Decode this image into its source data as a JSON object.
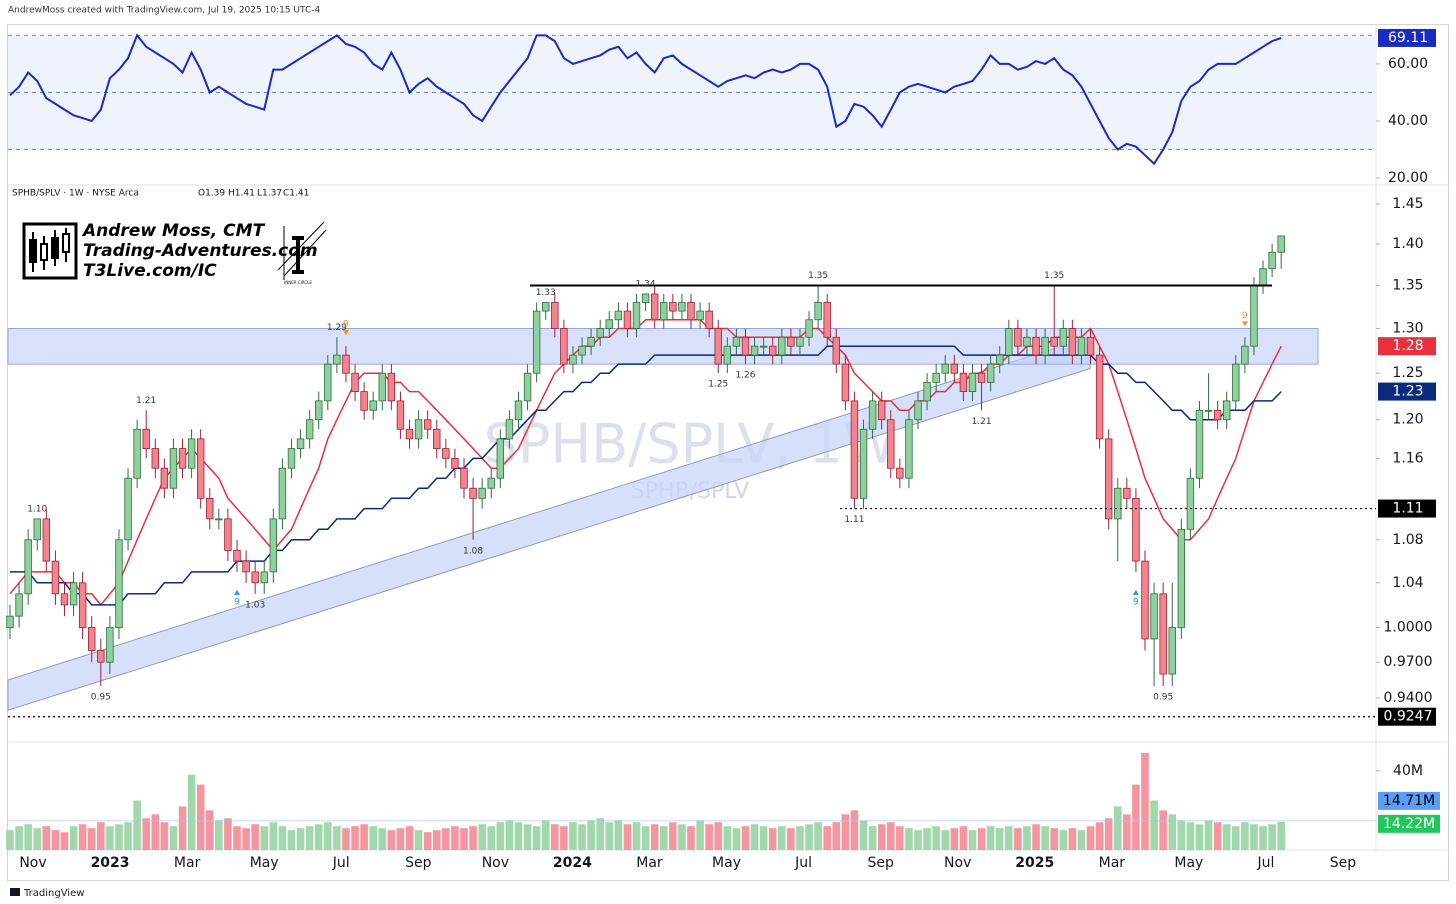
{
  "header": "AndrewMoss created with TradingView.com, Jul 19, 2025 10:15 UTC-4",
  "footer": "TradingView",
  "logo": {
    "lines": [
      "Andrew Moss, CMT",
      "Trading-Adventures.com",
      "T3Live.com/IC"
    ],
    "badge": "INNER CIRCLE"
  },
  "chart_data": [
    {
      "type": "line",
      "color": "#1a2bbf",
      "ylim": [
        19.3,
        71.9
      ],
      "yticks": [
        {
          "value": 20,
          "label": "20.00"
        },
        {
          "value": 40,
          "label": "40.00"
        },
        {
          "value": 60,
          "label": "60.00"
        }
      ],
      "levels": [
        30,
        50,
        70
      ],
      "values": [
        49,
        52,
        57,
        54,
        48,
        46,
        44,
        42,
        41,
        40,
        44,
        55,
        58,
        62,
        70,
        66,
        64,
        62,
        60,
        57,
        64,
        58,
        50,
        52,
        50,
        48,
        46,
        45,
        44,
        58,
        58,
        60,
        62,
        64,
        66,
        68,
        70,
        67,
        66,
        64,
        60,
        58,
        64,
        58,
        50,
        53,
        55,
        52,
        50,
        48,
        46,
        42,
        40,
        45,
        50,
        54,
        58,
        62,
        70,
        70,
        68,
        62,
        60,
        61,
        62,
        63,
        65,
        66,
        62,
        64,
        60,
        57,
        62,
        63,
        60,
        58,
        56,
        54,
        52,
        54,
        55,
        56,
        55,
        57,
        58,
        57,
        58,
        60,
        60,
        58,
        52,
        38,
        40,
        46,
        45,
        42,
        38,
        44,
        50,
        52,
        53,
        52,
        51,
        50,
        52,
        53,
        54,
        58,
        63,
        60,
        60,
        58,
        59,
        61,
        60,
        62,
        58,
        56,
        52,
        46,
        40,
        34,
        30,
        32,
        31,
        28,
        25,
        30,
        36,
        47,
        52,
        54,
        58,
        60,
        60,
        60,
        62,
        64,
        66,
        68,
        69.11
      ]
    },
    {
      "type": "candlestick",
      "log_scale": true,
      "grid": false,
      "legend": [
        "SPHB/SPLV · 1W · NYSE Arca",
        "O1.39",
        "H1.41",
        "L1.37",
        "C1.41"
      ],
      "watermark": [
        "SPHB/SPLV, 1W",
        "SPHB/SPLV"
      ],
      "up_color": "#8fd19e",
      "down_color": "#f3838f",
      "ylim": [
        0.906,
        1.468
      ],
      "yticks": [
        {
          "value": 0.94,
          "label": "0.9400"
        },
        {
          "value": 0.97,
          "label": "0.9700"
        },
        {
          "value": 1.0,
          "label": "1.0000"
        },
        1.04,
        1.08,
        1.16,
        {
          "value": 1.2,
          "label": "1.20"
        },
        1.25,
        {
          "value": 1.3,
          "label": "1.30"
        },
        1.35,
        {
          "value": 1.4,
          "label": "1.40"
        },
        1.45
      ],
      "open": [
        1.0,
        1.01,
        1.03,
        1.08,
        1.1,
        1.06,
        1.03,
        1.02,
        1.04,
        1.0,
        0.98,
        0.97,
        1.0,
        1.08,
        1.14,
        1.19,
        1.17,
        1.15,
        1.13,
        1.17,
        1.15,
        1.18,
        1.12,
        1.1,
        1.1,
        1.07,
        1.06,
        1.05,
        1.04,
        1.05,
        1.1,
        1.15,
        1.17,
        1.18,
        1.2,
        1.22,
        1.26,
        1.27,
        1.25,
        1.23,
        1.21,
        1.22,
        1.25,
        1.22,
        1.19,
        1.18,
        1.2,
        1.19,
        1.17,
        1.16,
        1.15,
        1.13,
        1.12,
        1.13,
        1.14,
        1.18,
        1.2,
        1.22,
        1.25,
        1.32,
        1.33,
        1.3,
        1.26,
        1.27,
        1.28,
        1.29,
        1.3,
        1.31,
        1.32,
        1.3,
        1.33,
        1.34,
        1.31,
        1.33,
        1.32,
        1.33,
        1.31,
        1.32,
        1.3,
        1.26,
        1.28,
        1.29,
        1.27,
        1.28,
        1.28,
        1.27,
        1.29,
        1.28,
        1.29,
        1.31,
        1.33,
        1.29,
        1.26,
        1.22,
        1.12,
        1.19,
        1.22,
        1.2,
        1.15,
        1.14,
        1.2,
        1.22,
        1.24,
        1.25,
        1.26,
        1.25,
        1.23,
        1.25,
        1.24,
        1.26,
        1.27,
        1.3,
        1.28,
        1.29,
        1.27,
        1.29,
        1.28,
        1.3,
        1.27,
        1.29,
        1.27,
        1.18,
        1.1,
        1.13,
        1.12,
        1.06,
        0.99,
        1.03,
        0.96,
        1.0,
        1.09,
        1.14,
        1.21,
        1.21,
        1.2,
        1.22,
        1.26,
        1.28,
        1.35,
        1.37,
        1.39
      ],
      "high": [
        1.02,
        1.04,
        1.09,
        1.1,
        1.11,
        1.07,
        1.04,
        1.05,
        1.05,
        1.01,
        0.99,
        1.01,
        1.09,
        1.15,
        1.2,
        1.21,
        1.18,
        1.16,
        1.18,
        1.18,
        1.19,
        1.19,
        1.13,
        1.11,
        1.11,
        1.08,
        1.07,
        1.06,
        1.06,
        1.11,
        1.16,
        1.18,
        1.19,
        1.21,
        1.23,
        1.27,
        1.29,
        1.28,
        1.26,
        1.24,
        1.23,
        1.26,
        1.26,
        1.23,
        1.2,
        1.21,
        1.21,
        1.2,
        1.18,
        1.17,
        1.16,
        1.14,
        1.14,
        1.15,
        1.19,
        1.21,
        1.23,
        1.26,
        1.33,
        1.33,
        1.34,
        1.31,
        1.28,
        1.29,
        1.3,
        1.31,
        1.32,
        1.33,
        1.33,
        1.34,
        1.34,
        1.35,
        1.34,
        1.34,
        1.34,
        1.34,
        1.33,
        1.33,
        1.31,
        1.29,
        1.3,
        1.3,
        1.29,
        1.29,
        1.29,
        1.3,
        1.3,
        1.3,
        1.32,
        1.35,
        1.34,
        1.3,
        1.27,
        1.23,
        1.2,
        1.23,
        1.23,
        1.21,
        1.16,
        1.21,
        1.23,
        1.25,
        1.26,
        1.27,
        1.27,
        1.26,
        1.26,
        1.26,
        1.27,
        1.28,
        1.31,
        1.31,
        1.3,
        1.3,
        1.3,
        1.35,
        1.31,
        1.31,
        1.3,
        1.3,
        1.28,
        1.19,
        1.14,
        1.14,
        1.13,
        1.07,
        1.04,
        1.04,
        1.04,
        1.1,
        1.15,
        1.22,
        1.25,
        1.22,
        1.23,
        1.27,
        1.29,
        1.36,
        1.38,
        1.4,
        1.41
      ],
      "low": [
        0.99,
        1.0,
        1.02,
        1.07,
        1.05,
        1.02,
        1.01,
        1.01,
        0.99,
        0.97,
        0.95,
        0.96,
        0.99,
        1.07,
        1.13,
        1.16,
        1.14,
        1.12,
        1.12,
        1.14,
        1.14,
        1.11,
        1.09,
        1.09,
        1.06,
        1.05,
        1.04,
        1.03,
        1.03,
        1.04,
        1.09,
        1.14,
        1.16,
        1.17,
        1.19,
        1.21,
        1.25,
        1.24,
        1.22,
        1.2,
        1.2,
        1.21,
        1.21,
        1.18,
        1.17,
        1.17,
        1.18,
        1.16,
        1.15,
        1.14,
        1.12,
        1.08,
        1.11,
        1.12,
        1.13,
        1.17,
        1.19,
        1.21,
        1.24,
        1.31,
        1.29,
        1.25,
        1.25,
        1.26,
        1.27,
        1.28,
        1.29,
        1.3,
        1.29,
        1.29,
        1.32,
        1.3,
        1.3,
        1.31,
        1.31,
        1.3,
        1.3,
        1.29,
        1.25,
        1.25,
        1.27,
        1.26,
        1.26,
        1.27,
        1.26,
        1.26,
        1.27,
        1.27,
        1.28,
        1.3,
        1.28,
        1.25,
        1.21,
        1.11,
        1.11,
        1.18,
        1.19,
        1.14,
        1.13,
        1.13,
        1.19,
        1.21,
        1.23,
        1.24,
        1.24,
        1.22,
        1.22,
        1.21,
        1.23,
        1.25,
        1.26,
        1.27,
        1.27,
        1.26,
        1.26,
        1.27,
        1.27,
        1.26,
        1.26,
        1.26,
        1.17,
        1.09,
        1.06,
        1.11,
        1.05,
        0.98,
        0.95,
        0.95,
        0.95,
        0.99,
        1.08,
        1.13,
        1.2,
        1.19,
        1.19,
        1.21,
        1.25,
        1.27,
        1.34,
        1.36,
        1.37
      ],
      "close": [
        1.01,
        1.03,
        1.08,
        1.1,
        1.06,
        1.03,
        1.02,
        1.04,
        1.0,
        0.98,
        0.97,
        1.0,
        1.08,
        1.14,
        1.19,
        1.17,
        1.15,
        1.13,
        1.17,
        1.15,
        1.18,
        1.12,
        1.1,
        1.1,
        1.07,
        1.06,
        1.05,
        1.04,
        1.05,
        1.1,
        1.15,
        1.17,
        1.18,
        1.2,
        1.22,
        1.26,
        1.27,
        1.25,
        1.23,
        1.21,
        1.22,
        1.25,
        1.22,
        1.19,
        1.18,
        1.2,
        1.19,
        1.17,
        1.16,
        1.15,
        1.13,
        1.12,
        1.13,
        1.14,
        1.18,
        1.2,
        1.22,
        1.25,
        1.32,
        1.33,
        1.3,
        1.26,
        1.27,
        1.28,
        1.29,
        1.3,
        1.31,
        1.32,
        1.3,
        1.33,
        1.34,
        1.31,
        1.33,
        1.32,
        1.33,
        1.31,
        1.32,
        1.3,
        1.26,
        1.28,
        1.29,
        1.27,
        1.28,
        1.28,
        1.27,
        1.29,
        1.28,
        1.29,
        1.31,
        1.33,
        1.29,
        1.26,
        1.22,
        1.12,
        1.19,
        1.22,
        1.2,
        1.15,
        1.14,
        1.2,
        1.22,
        1.24,
        1.25,
        1.26,
        1.25,
        1.23,
        1.25,
        1.24,
        1.26,
        1.27,
        1.3,
        1.28,
        1.29,
        1.27,
        1.29,
        1.28,
        1.3,
        1.27,
        1.29,
        1.27,
        1.18,
        1.1,
        1.13,
        1.12,
        1.06,
        0.99,
        1.03,
        0.96,
        1.0,
        1.09,
        1.14,
        1.21,
        1.21,
        1.2,
        1.22,
        1.26,
        1.28,
        1.35,
        1.37,
        1.39,
        1.41
      ],
      "series": [
        {
          "color": "#e8303f",
          "values": [
            1.03,
            1.04,
            1.05,
            1.05,
            1.05,
            1.05,
            1.04,
            1.04,
            1.03,
            1.03,
            1.02,
            1.03,
            1.04,
            1.06,
            1.08,
            1.1,
            1.12,
            1.14,
            1.15,
            1.16,
            1.17,
            1.16,
            1.15,
            1.14,
            1.12,
            1.11,
            1.1,
            1.09,
            1.08,
            1.07,
            1.08,
            1.09,
            1.11,
            1.13,
            1.15,
            1.18,
            1.2,
            1.22,
            1.24,
            1.25,
            1.25,
            1.25,
            1.24,
            1.24,
            1.23,
            1.23,
            1.22,
            1.21,
            1.2,
            1.19,
            1.18,
            1.17,
            1.16,
            1.15,
            1.15,
            1.16,
            1.17,
            1.19,
            1.21,
            1.23,
            1.25,
            1.26,
            1.27,
            1.28,
            1.28,
            1.29,
            1.29,
            1.3,
            1.3,
            1.3,
            1.31,
            1.31,
            1.31,
            1.31,
            1.31,
            1.31,
            1.31,
            1.3,
            1.3,
            1.3,
            1.29,
            1.29,
            1.29,
            1.29,
            1.29,
            1.29,
            1.29,
            1.29,
            1.3,
            1.3,
            1.29,
            1.28,
            1.27,
            1.25,
            1.24,
            1.23,
            1.22,
            1.22,
            1.21,
            1.21,
            1.22,
            1.22,
            1.23,
            1.23,
            1.24,
            1.24,
            1.25,
            1.25,
            1.26,
            1.26,
            1.27,
            1.27,
            1.28,
            1.28,
            1.28,
            1.29,
            1.29,
            1.29,
            1.29,
            1.3,
            1.28,
            1.26,
            1.23,
            1.2,
            1.17,
            1.14,
            1.12,
            1.1,
            1.09,
            1.08,
            1.08,
            1.09,
            1.1,
            1.12,
            1.14,
            1.16,
            1.19,
            1.22,
            1.24,
            1.26,
            1.28
          ]
        },
        {
          "color": "#0c2a7d",
          "values": [
            1.05,
            1.05,
            1.05,
            1.04,
            1.04,
            1.04,
            1.04,
            1.03,
            1.03,
            1.02,
            1.02,
            1.02,
            1.02,
            1.03,
            1.03,
            1.03,
            1.03,
            1.04,
            1.04,
            1.04,
            1.05,
            1.05,
            1.05,
            1.05,
            1.05,
            1.06,
            1.06,
            1.06,
            1.06,
            1.07,
            1.07,
            1.08,
            1.08,
            1.08,
            1.09,
            1.09,
            1.1,
            1.1,
            1.1,
            1.11,
            1.11,
            1.11,
            1.12,
            1.12,
            1.12,
            1.13,
            1.13,
            1.14,
            1.14,
            1.15,
            1.15,
            1.16,
            1.16,
            1.17,
            1.18,
            1.18,
            1.19,
            1.2,
            1.21,
            1.21,
            1.22,
            1.23,
            1.23,
            1.24,
            1.24,
            1.25,
            1.25,
            1.26,
            1.26,
            1.26,
            1.26,
            1.27,
            1.27,
            1.27,
            1.27,
            1.27,
            1.27,
            1.27,
            1.27,
            1.27,
            1.27,
            1.27,
            1.27,
            1.27,
            1.27,
            1.27,
            1.27,
            1.27,
            1.27,
            1.27,
            1.28,
            1.28,
            1.28,
            1.28,
            1.28,
            1.28,
            1.28,
            1.28,
            1.28,
            1.28,
            1.28,
            1.28,
            1.28,
            1.28,
            1.28,
            1.27,
            1.27,
            1.27,
            1.27,
            1.27,
            1.27,
            1.27,
            1.27,
            1.27,
            1.27,
            1.27,
            1.27,
            1.27,
            1.27,
            1.27,
            1.26,
            1.26,
            1.25,
            1.25,
            1.24,
            1.24,
            1.23,
            1.22,
            1.21,
            1.21,
            1.2,
            1.2,
            1.2,
            1.2,
            1.21,
            1.21,
            1.21,
            1.22,
            1.22,
            1.22,
            1.23
          ]
        }
      ],
      "zone": [
        1.26,
        1.3
      ],
      "channel": {
        "start": [
          0.93,
          0.955
        ],
        "end": [
          1.255,
          1.29
        ]
      },
      "levels": [
        1.35,
        1.11,
        0.9247
      ],
      "annotations": [
        "1.10",
        "0.95",
        "1.21",
        "1.03",
        "1.29",
        "1.08",
        "1.33",
        "1.34",
        "1.25",
        "1.26",
        "1.35",
        "1.11",
        "1.21",
        "1.35",
        "0.95"
      ],
      "td_marks": [
        "9",
        "9",
        "9",
        "9"
      ]
    },
    {
      "type": "bar",
      "ylim": [
        0,
        53
      ],
      "yticks": [
        {
          "value": 40,
          "label": "40M"
        }
      ],
      "xticks": [
        "Nov",
        "2023",
        "Mar",
        "May",
        "Jul",
        "Sep",
        "Nov",
        "2024",
        "Mar",
        "May",
        "Jul",
        "Sep",
        "Nov",
        "2025",
        "Mar",
        "May",
        "Jul",
        "Sep"
      ],
      "values": [
        10,
        12,
        13,
        11,
        12,
        10,
        9,
        12,
        13,
        11,
        14,
        12,
        13,
        14,
        25,
        16,
        18,
        14,
        12,
        22,
        38,
        33,
        20,
        15,
        16,
        12,
        11,
        13,
        12,
        14,
        12,
        10,
        11,
        12,
        13,
        14,
        12,
        11,
        12,
        13,
        12,
        11,
        10,
        11,
        12,
        10,
        9,
        10,
        11,
        12,
        11,
        12,
        13,
        12,
        14,
        15,
        14,
        13,
        12,
        15,
        13,
        12,
        14,
        13,
        15,
        16,
        14,
        15,
        13,
        14,
        12,
        13,
        12,
        14,
        13,
        12,
        15,
        13,
        14,
        12,
        11,
        12,
        13,
        12,
        11,
        12,
        11,
        12,
        13,
        14,
        12,
        14,
        18,
        20,
        15,
        12,
        13,
        14,
        12,
        11,
        10,
        11,
        12,
        10,
        11,
        12,
        10,
        11,
        12,
        11,
        12,
        11,
        12,
        13,
        12,
        11,
        10,
        11,
        10,
        12,
        14,
        16,
        22,
        18,
        33,
        49,
        25,
        20,
        18,
        15,
        14,
        13,
        15,
        14,
        13,
        12,
        14,
        13,
        12,
        13,
        14.22
      ],
      "value_labels": {
        "140": "14.22M"
      },
      "ma": {
        "value": 14.71,
        "label": "14.71M"
      }
    }
  ]
}
